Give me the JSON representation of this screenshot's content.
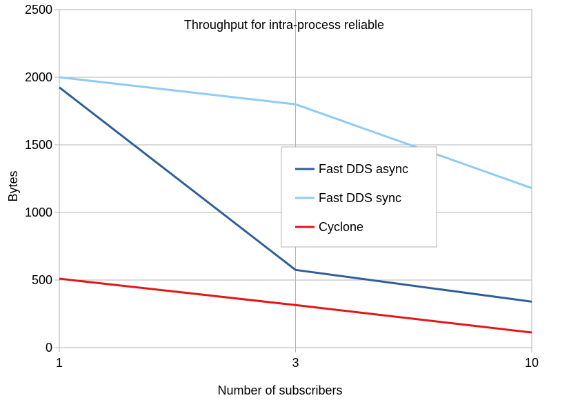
{
  "chart_data": {
    "type": "line",
    "title": "Throughput for intra-process reliable",
    "xlabel": "Number of subscribers",
    "ylabel": "Bytes",
    "categories": [
      "1",
      "3",
      "10"
    ],
    "ylim": [
      0,
      2500
    ],
    "yticks": [
      0,
      500,
      1000,
      1500,
      2000,
      2500
    ],
    "grid": true,
    "legend_position": "center-right",
    "series": [
      {
        "name": "Fast DDS async",
        "color": "#2E5E99",
        "values": [
          1925,
          575,
          340
        ]
      },
      {
        "name": "Fast DDS sync",
        "color": "#8ECBF5",
        "values": [
          2000,
          1800,
          1180
        ]
      },
      {
        "name": "Cyclone",
        "color": "#E31515",
        "values": [
          510,
          315,
          112
        ]
      }
    ]
  }
}
